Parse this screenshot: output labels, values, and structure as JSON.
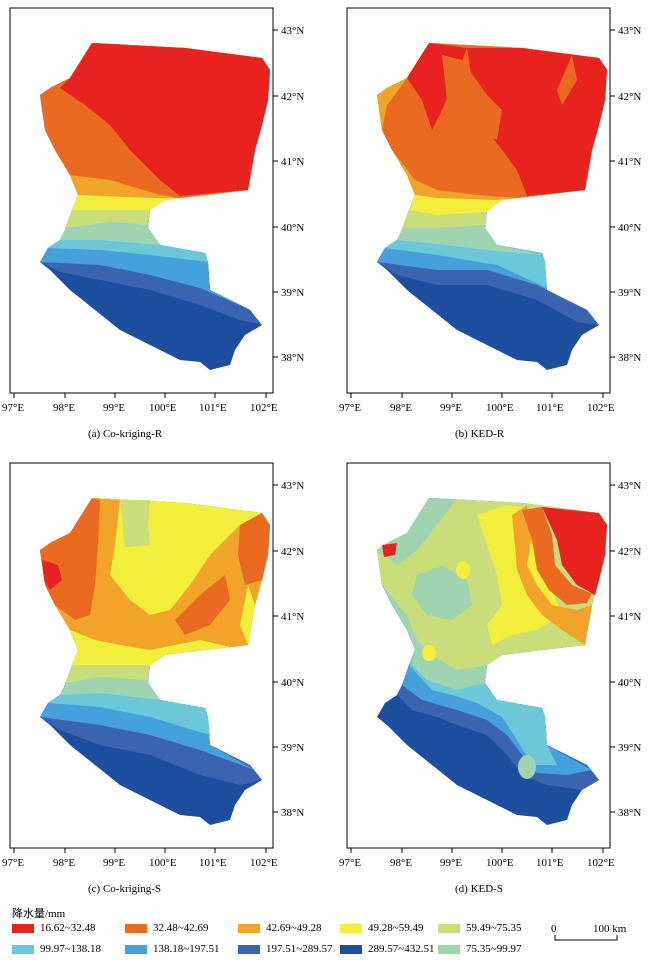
{
  "panels": [
    {
      "id": "a",
      "caption": "(a) Co-kriging-R"
    },
    {
      "id": "b",
      "caption": "(b)  KED-R"
    },
    {
      "id": "c",
      "caption": "(c) Co-kriging-S"
    },
    {
      "id": "d",
      "caption": "(d)  KED-S"
    }
  ],
  "lat_labels": [
    "43°N",
    "42°N",
    "41°N",
    "40°N",
    "39°N",
    "38°N"
  ],
  "lon_labels": [
    "97°E",
    "98°E",
    "99°E",
    "100°E",
    "101°E",
    "102°E"
  ],
  "legend": {
    "title": "降水量/mm",
    "items": [
      {
        "label": "16.62~32.48",
        "color": "#e8231f"
      },
      {
        "label": "32.48~42.69",
        "color": "#ea6a22"
      },
      {
        "label": "42.69~49.28",
        "color": "#f2a42a"
      },
      {
        "label": "49.28~59.49",
        "color": "#f1ee3c"
      },
      {
        "label": "59.49~75.35",
        "color": "#c9dd7a"
      },
      {
        "label": "99.97~138.18",
        "color": "#6cc8d8"
      },
      {
        "label": "138.18~197.51",
        "color": "#46a0dc"
      },
      {
        "label": "197.51~289.57",
        "color": "#3a64b0"
      },
      {
        "label": "289.57~432.51",
        "color": "#1e4e9e"
      },
      {
        "label": "75.35~99.97",
        "color": "#9fd4b0"
      }
    ]
  },
  "scalebar": {
    "zero": "0",
    "label": "100 km"
  }
}
